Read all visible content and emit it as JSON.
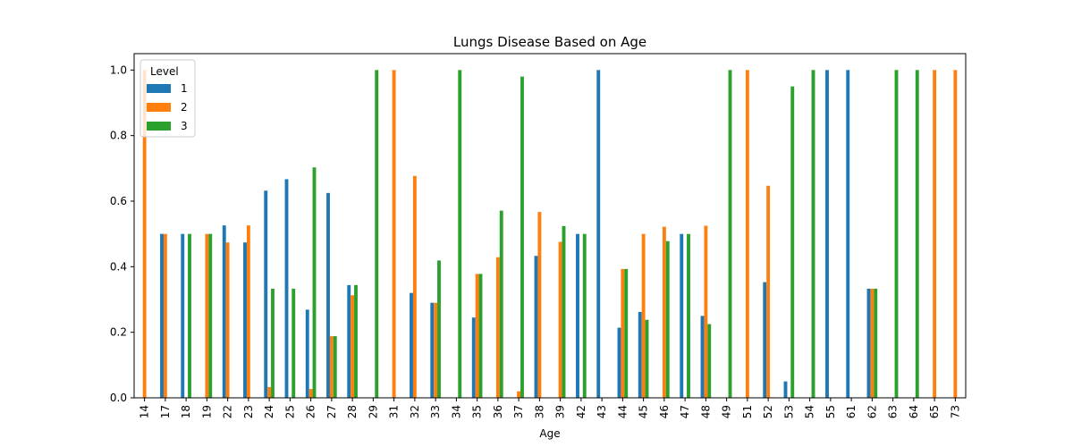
{
  "chart_data": {
    "type": "bar",
    "title": "Lungs Disease Based on Age",
    "xlabel": "Age",
    "ylabel": "",
    "ylim": [
      0,
      1.05
    ],
    "yticks": [
      "0.0",
      "0.2",
      "0.4",
      "0.6",
      "0.8",
      "1.0"
    ],
    "categories": [
      "14",
      "17",
      "18",
      "19",
      "22",
      "23",
      "24",
      "25",
      "26",
      "27",
      "28",
      "29",
      "31",
      "32",
      "33",
      "34",
      "35",
      "36",
      "37",
      "38",
      "39",
      "42",
      "43",
      "44",
      "45",
      "46",
      "47",
      "48",
      "49",
      "51",
      "52",
      "53",
      "54",
      "55",
      "61",
      "62",
      "63",
      "64",
      "65",
      "73"
    ],
    "legend": {
      "title": "Level",
      "placement": "upper-left"
    },
    "series": [
      {
        "name": "1",
        "color": "#1f77b4",
        "values": [
          0,
          0.5,
          0.5,
          0,
          0.526,
          0.474,
          0.632,
          0.667,
          0.269,
          0.625,
          0.344,
          0,
          0,
          0.32,
          0.29,
          0,
          0.245,
          0,
          0,
          0.433,
          0,
          0.5,
          1,
          0.214,
          0.262,
          0,
          0.5,
          0.25,
          0,
          0,
          0.353,
          0.05,
          0,
          1,
          1,
          0.333,
          0,
          0,
          0,
          0
        ]
      },
      {
        "name": "2",
        "color": "#ff7f0e",
        "values": [
          1,
          0.5,
          0,
          0.5,
          0.474,
          0.526,
          0.033,
          0,
          0.027,
          0.188,
          0.313,
          0,
          1,
          0.677,
          0.29,
          0,
          0.378,
          0.429,
          0.02,
          0.567,
          0.476,
          0,
          0,
          0.393,
          0.5,
          0.522,
          0,
          0.525,
          0,
          1,
          0.647,
          0,
          0,
          0,
          0,
          0.333,
          0,
          0,
          1,
          1
        ]
      },
      {
        "name": "3",
        "color": "#2ca02c",
        "values": [
          0,
          0,
          0.5,
          0.5,
          0,
          0,
          0.333,
          0.333,
          0.703,
          0.188,
          0.344,
          1,
          0,
          0,
          0.419,
          1,
          0.378,
          0.571,
          0.98,
          0,
          0.524,
          0.5,
          0,
          0.393,
          0.238,
          0.478,
          0.5,
          0.225,
          1,
          0,
          0,
          0.95,
          1,
          0,
          0,
          0.333,
          1,
          1,
          0,
          0
        ]
      }
    ]
  }
}
